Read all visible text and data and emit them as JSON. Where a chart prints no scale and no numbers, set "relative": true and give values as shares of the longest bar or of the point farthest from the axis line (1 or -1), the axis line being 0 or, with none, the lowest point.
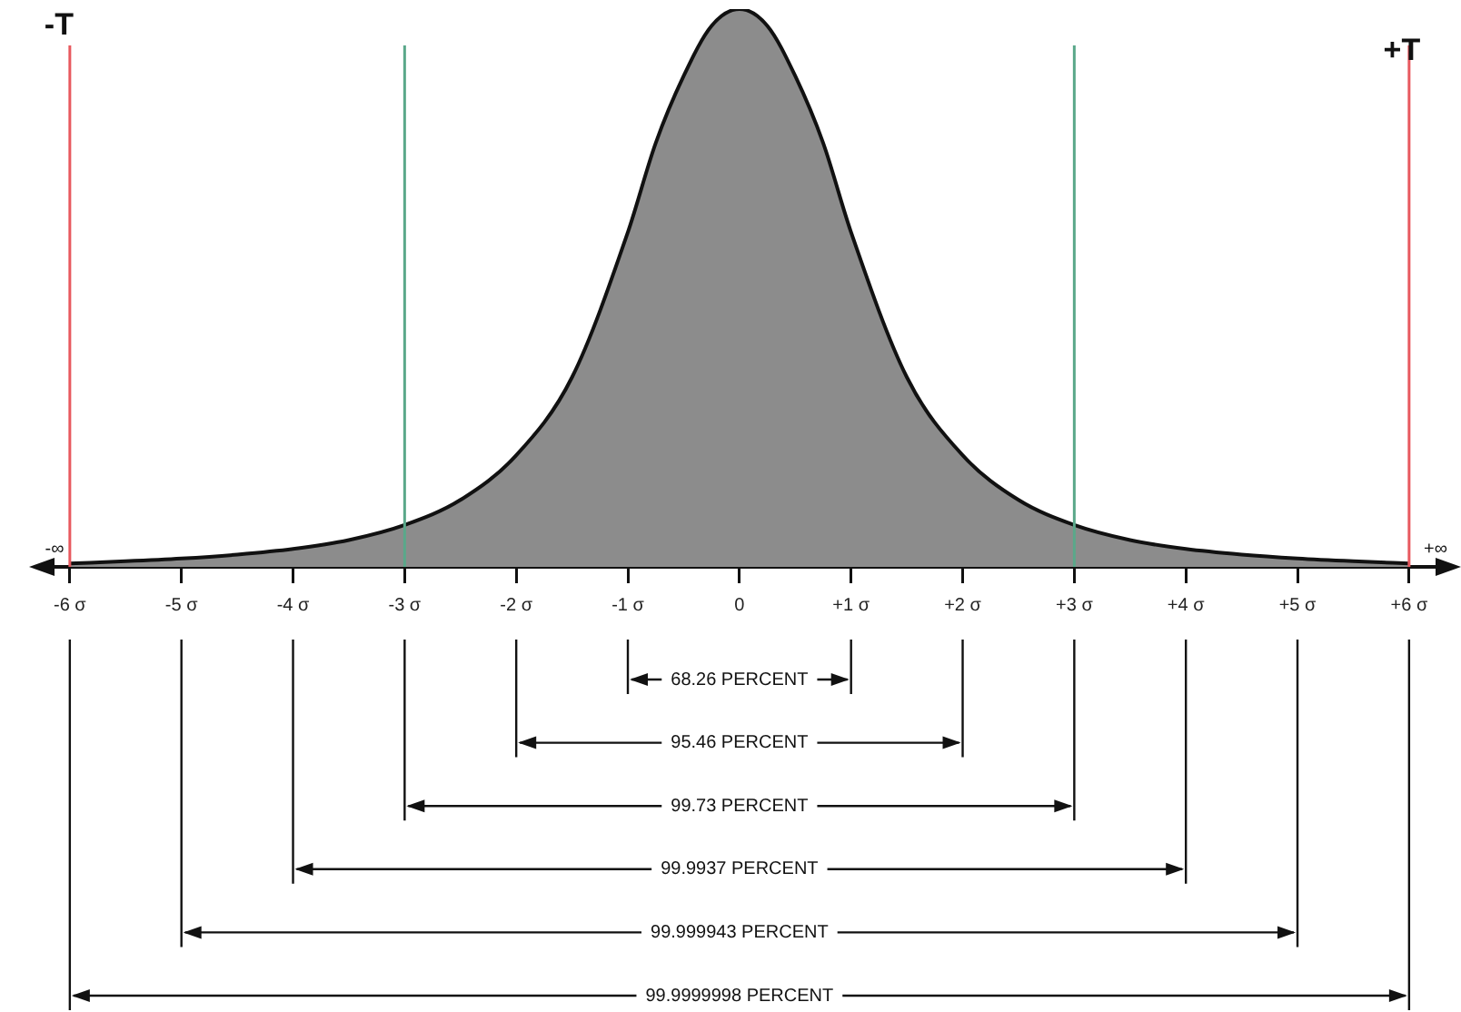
{
  "chart_data": {
    "type": "area",
    "relative": true,
    "x": [
      -6,
      -5.5,
      -5,
      -4.5,
      -4,
      -3.5,
      -3,
      -2.5,
      -2,
      -1.5,
      -1,
      -0.75,
      -0.5,
      -0.25,
      0,
      0.25,
      0.5,
      0.75,
      1,
      1.5,
      2,
      2.5,
      3,
      3.5,
      4,
      4.5,
      5,
      5.5,
      6
    ],
    "series": [
      {
        "color": "#8c8c8c",
        "values": [
          0.006,
          0.01,
          0.015,
          0.022,
          0.032,
          0.048,
          0.075,
          0.12,
          0.2,
          0.34,
          0.6,
          0.76,
          0.88,
          0.97,
          1,
          0.97,
          0.88,
          0.76,
          0.6,
          0.34,
          0.2,
          0.12,
          0.075,
          0.048,
          0.032,
          0.022,
          0.015,
          0.01,
          0.006
        ]
      }
    ],
    "xlim": [
      -6.3,
      6.4
    ],
    "xticks": [
      {
        "value": -6,
        "label": "-6 σ"
      },
      {
        "value": -5,
        "label": "-5 σ"
      },
      {
        "value": -4,
        "label": "-4 σ"
      },
      {
        "value": -3,
        "label": "-3 σ"
      },
      {
        "value": -2,
        "label": "-2 σ"
      },
      {
        "value": -1,
        "label": "-1 σ"
      },
      0,
      {
        "value": 1,
        "label": "+1 σ"
      },
      {
        "value": 2,
        "label": "+2 σ"
      },
      {
        "value": 3,
        "label": "+3 σ"
      },
      {
        "value": 4,
        "label": "+4 σ"
      },
      {
        "value": 5,
        "label": "+5 σ"
      },
      {
        "value": 6,
        "label": "+6 σ"
      }
    ],
    "tick_labels": "x",
    "grid": false,
    "legend": false,
    "marker": "none",
    "ref_lines": [
      {
        "axis": "x",
        "value": -6,
        "label": "-T",
        "color": "#e8595f"
      },
      {
        "axis": "x",
        "value": 6,
        "label": "+T",
        "color": "#e8595f"
      },
      {
        "axis": "x",
        "value": -3,
        "label": null,
        "color": "#5aa88a"
      },
      {
        "axis": "x",
        "value": 3,
        "label": null,
        "color": "#5aa88a"
      }
    ],
    "annotations": [
      "-∞",
      "+∞",
      "68.26 PERCENT",
      "95.46 PERCENT",
      "99.73 PERCENT",
      "99.9937 PERCENT",
      "99.999943 PERCENT",
      "99.9999998 PERCENT"
    ]
  }
}
